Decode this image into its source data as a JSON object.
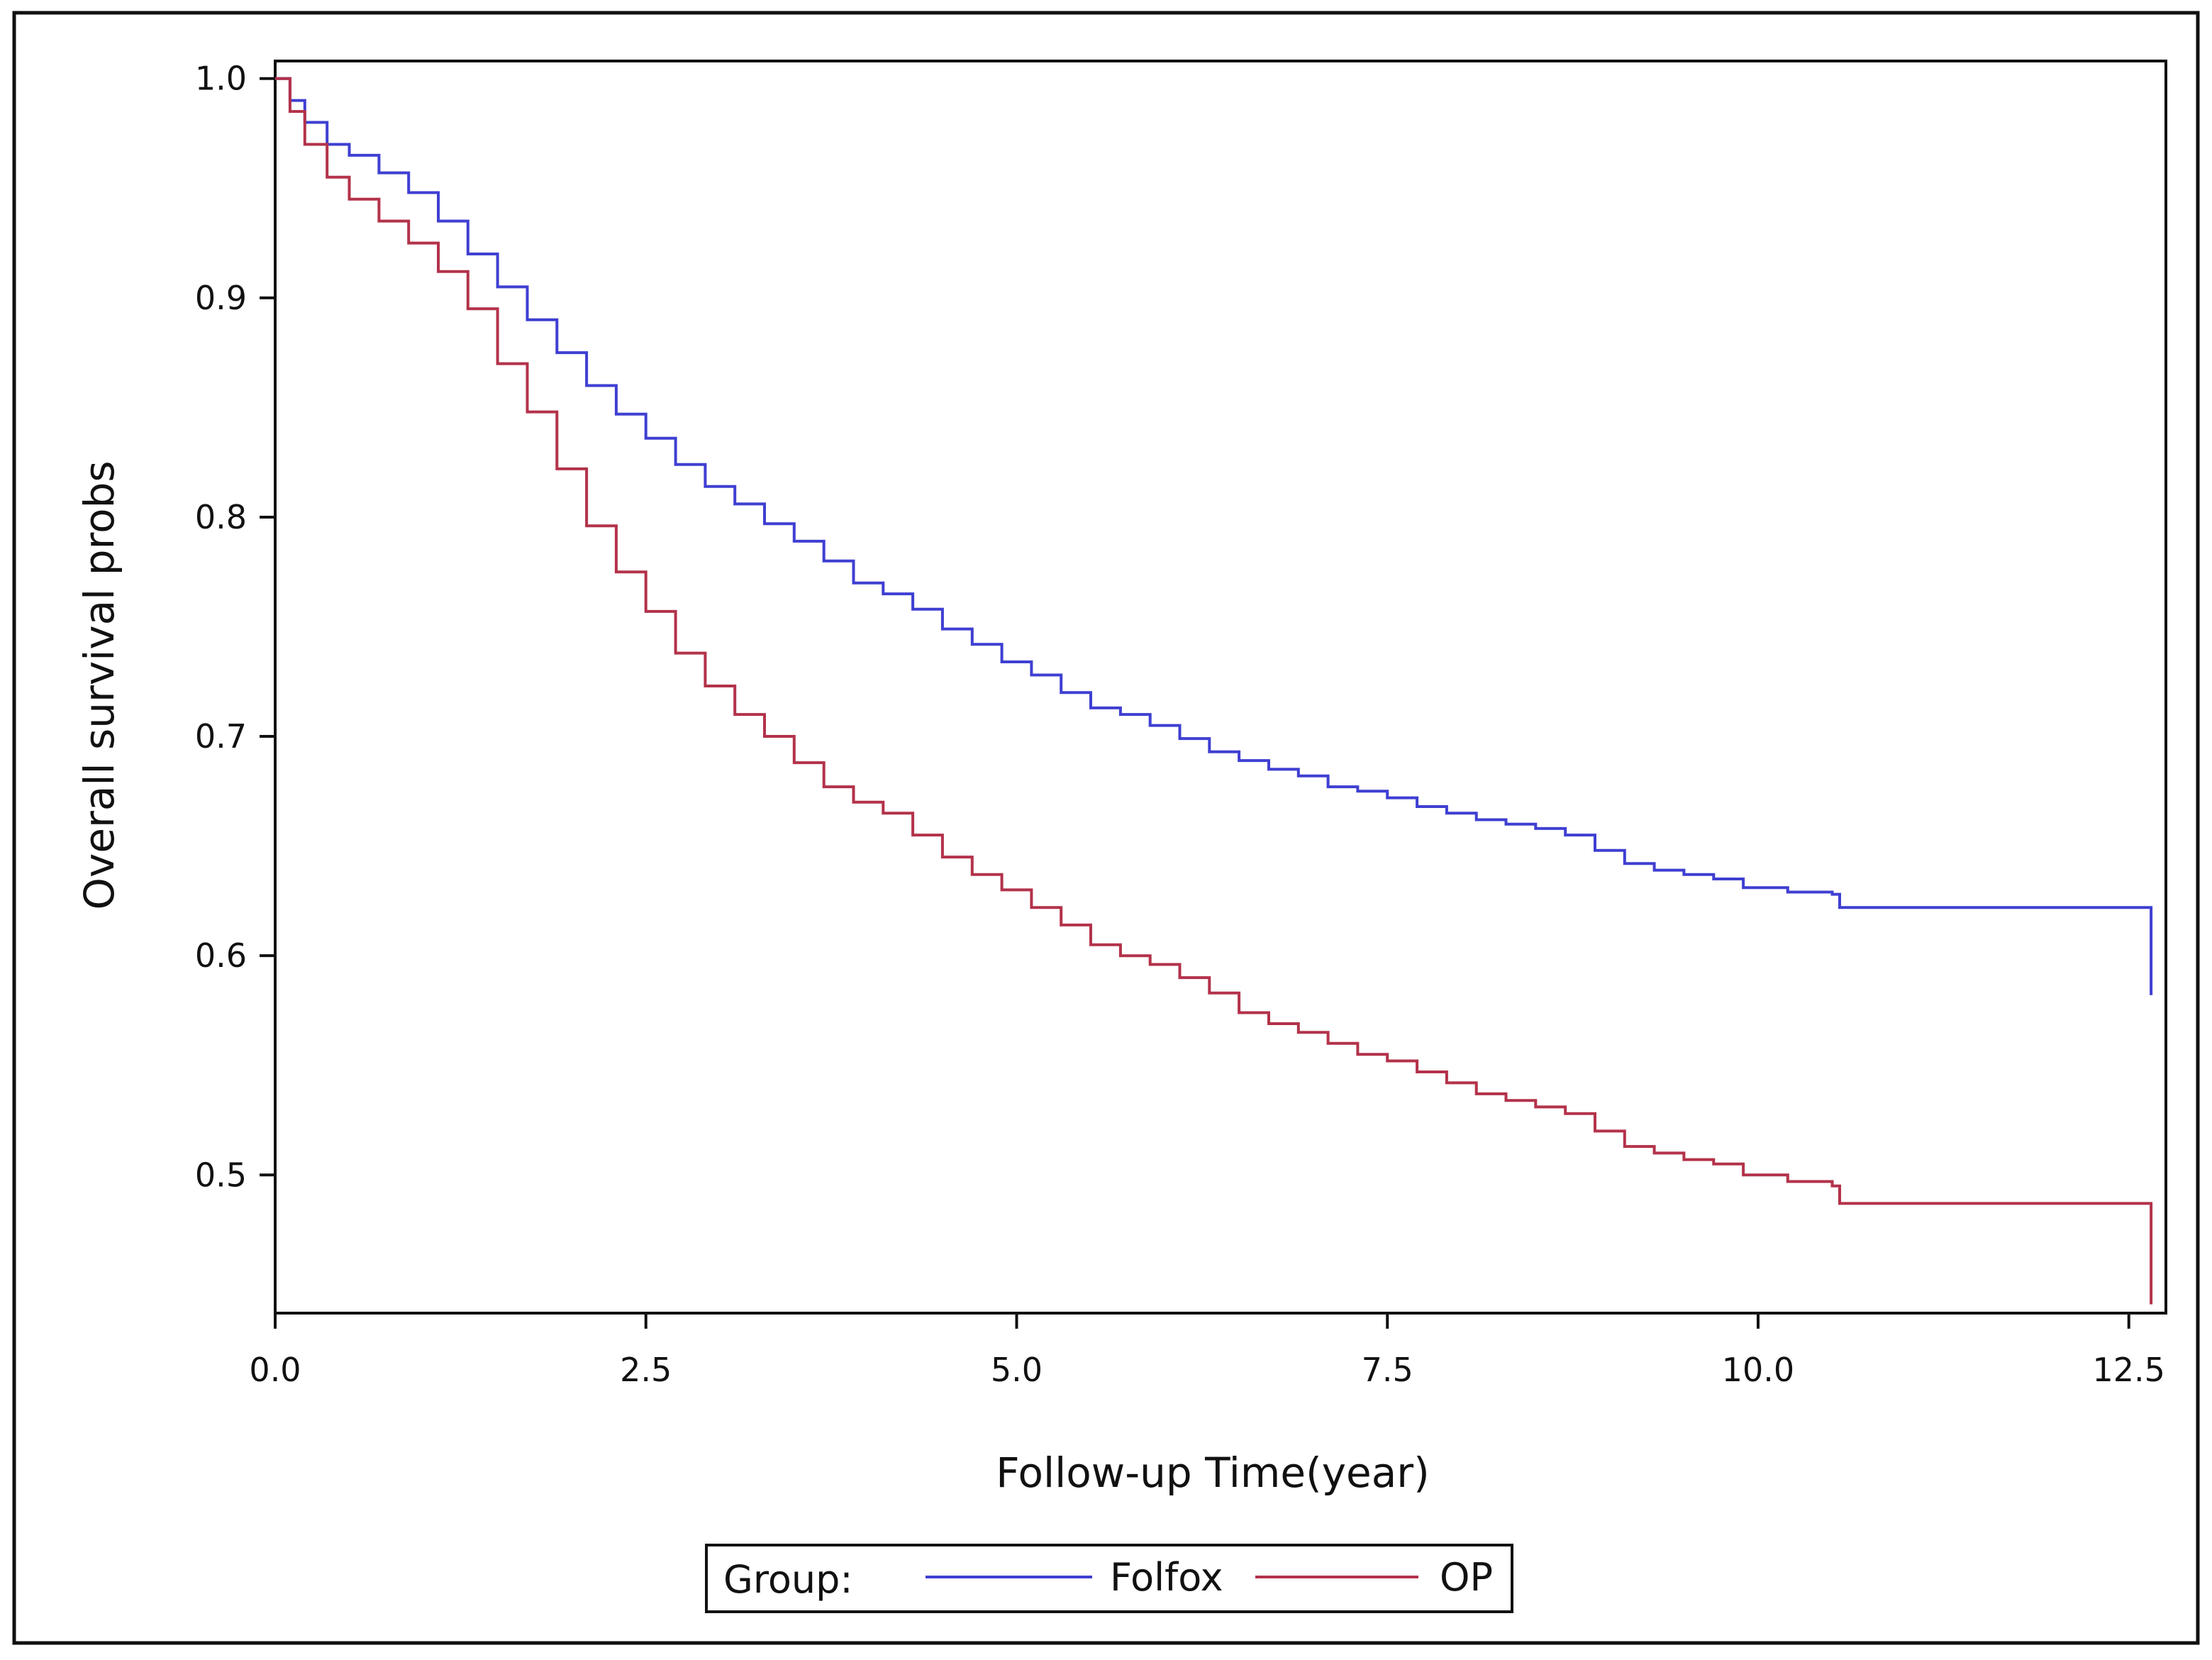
{
  "chart_data": {
    "type": "line",
    "step": true,
    "xlabel": "Follow-up Time(year)",
    "ylabel": "Overall survival probs",
    "xlim": [
      0,
      12.75
    ],
    "ylim": [
      0.437,
      1.008
    ],
    "x_ticks": [
      0,
      2.5,
      5,
      7.5,
      10,
      12.5
    ],
    "x_tick_labels": [
      "0.0",
      "2.5",
      "5.0",
      "7.5",
      "10.0",
      "12.5"
    ],
    "y_ticks": [
      0.5,
      0.6,
      0.7,
      0.8,
      0.9,
      1.0
    ],
    "y_tick_labels": [
      "0.5",
      "0.6",
      "0.7",
      "0.8",
      "0.9",
      "1.0"
    ],
    "grid": false,
    "legend": {
      "title": "Group:",
      "placement": "bottom-center",
      "entries": [
        "Folfox",
        "OP"
      ]
    },
    "series": [
      {
        "name": "Folfox",
        "color": "#3f3fd2",
        "x": [
          0,
          0.1,
          0.2,
          0.35,
          0.5,
          0.7,
          0.9,
          1.1,
          1.3,
          1.5,
          1.7,
          1.9,
          2.1,
          2.3,
          2.5,
          2.7,
          2.9,
          3.1,
          3.3,
          3.5,
          3.7,
          3.9,
          4.1,
          4.3,
          4.5,
          4.7,
          4.9,
          5.1,
          5.3,
          5.5,
          5.7,
          5.9,
          6.1,
          6.3,
          6.5,
          6.7,
          6.9,
          7.1,
          7.3,
          7.5,
          7.7,
          7.9,
          8.1,
          8.3,
          8.5,
          8.7,
          8.9,
          9.1,
          9.3,
          9.5,
          9.7,
          9.9,
          10.2,
          10.5,
          10.55,
          11.0,
          11.5,
          12.0,
          12.65
        ],
        "y": [
          1.0,
          0.99,
          0.98,
          0.97,
          0.965,
          0.957,
          0.948,
          0.935,
          0.92,
          0.905,
          0.89,
          0.875,
          0.86,
          0.847,
          0.836,
          0.824,
          0.814,
          0.806,
          0.797,
          0.789,
          0.78,
          0.77,
          0.765,
          0.758,
          0.749,
          0.742,
          0.734,
          0.728,
          0.72,
          0.713,
          0.71,
          0.705,
          0.699,
          0.693,
          0.689,
          0.685,
          0.682,
          0.677,
          0.675,
          0.672,
          0.668,
          0.665,
          0.662,
          0.66,
          0.658,
          0.655,
          0.648,
          0.642,
          0.639,
          0.637,
          0.635,
          0.631,
          0.629,
          0.628,
          0.622,
          0.622,
          0.622,
          0.622,
          0.582
        ]
      },
      {
        "name": "OP",
        "color": "#b3324a",
        "x": [
          0,
          0.1,
          0.2,
          0.35,
          0.5,
          0.7,
          0.9,
          1.1,
          1.3,
          1.5,
          1.7,
          1.9,
          2.1,
          2.3,
          2.5,
          2.7,
          2.9,
          3.1,
          3.3,
          3.5,
          3.7,
          3.9,
          4.1,
          4.3,
          4.5,
          4.7,
          4.9,
          5.1,
          5.3,
          5.5,
          5.7,
          5.9,
          6.1,
          6.3,
          6.5,
          6.7,
          6.9,
          7.1,
          7.3,
          7.5,
          7.7,
          7.9,
          8.1,
          8.3,
          8.5,
          8.7,
          8.9,
          9.1,
          9.3,
          9.5,
          9.7,
          9.9,
          10.2,
          10.5,
          10.55,
          11.0,
          11.5,
          12.0,
          12.65
        ],
        "y": [
          1.0,
          0.985,
          0.97,
          0.955,
          0.945,
          0.935,
          0.925,
          0.912,
          0.895,
          0.87,
          0.848,
          0.822,
          0.796,
          0.775,
          0.757,
          0.738,
          0.723,
          0.71,
          0.7,
          0.688,
          0.677,
          0.67,
          0.665,
          0.655,
          0.645,
          0.637,
          0.63,
          0.622,
          0.614,
          0.605,
          0.6,
          0.596,
          0.59,
          0.583,
          0.574,
          0.569,
          0.565,
          0.56,
          0.555,
          0.552,
          0.547,
          0.542,
          0.537,
          0.534,
          0.531,
          0.528,
          0.52,
          0.513,
          0.51,
          0.507,
          0.505,
          0.5,
          0.497,
          0.495,
          0.487,
          0.487,
          0.487,
          0.487,
          0.441
        ]
      }
    ]
  }
}
